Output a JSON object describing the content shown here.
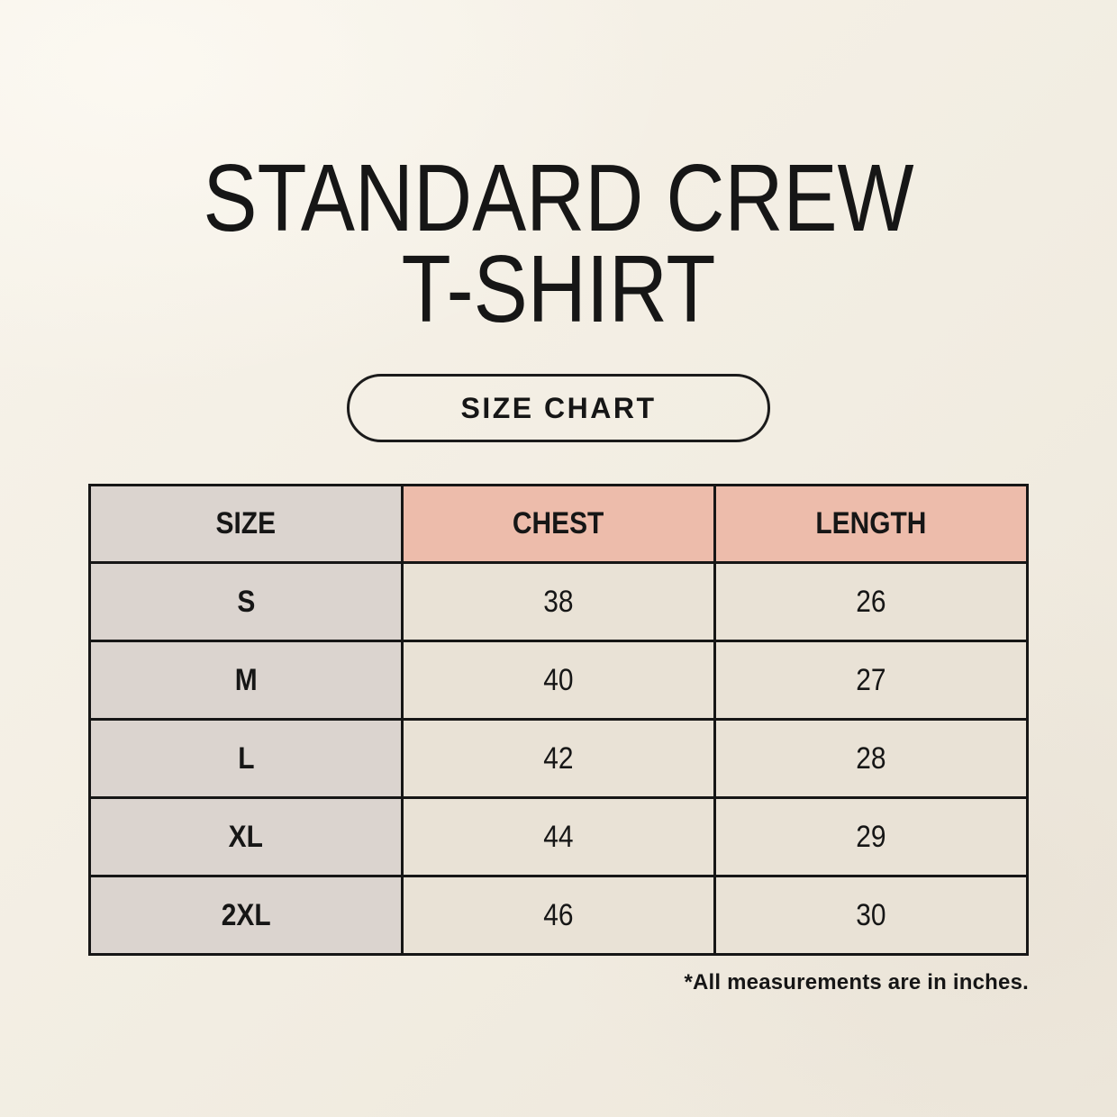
{
  "header": {
    "title_line1": "STANDARD CREW",
    "title_line2": "T-SHIRT",
    "badge_label": "SIZE CHART"
  },
  "chart_data": {
    "type": "table",
    "title": "STANDARD CREW T-SHIRT",
    "columns": [
      "SIZE",
      "CHEST",
      "LENGTH"
    ],
    "rows": [
      [
        "S",
        "38",
        "26"
      ],
      [
        "M",
        "40",
        "27"
      ],
      [
        "L",
        "42",
        "28"
      ],
      [
        "XL",
        "44",
        "29"
      ],
      [
        "2XL",
        "46",
        "30"
      ]
    ],
    "note": "*All measurements are in inches."
  },
  "colors": {
    "background": "#f2ede2",
    "size_column_bg": "#dbd4cf",
    "measure_header_bg": "#edbcab",
    "value_cell_bg": "#e9e2d6",
    "border": "#161616",
    "text": "#161616"
  }
}
